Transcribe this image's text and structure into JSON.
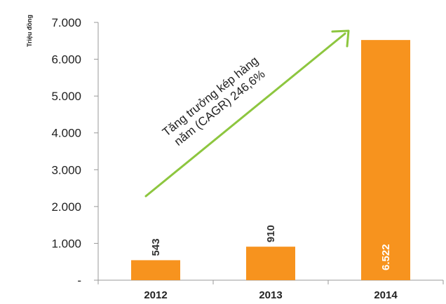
{
  "chart_data": {
    "type": "bar",
    "ylabel": "Triệu đồng",
    "categories": [
      "2012",
      "2013",
      "2014"
    ],
    "values": [
      543,
      910,
      6522
    ],
    "value_labels": [
      "543",
      "910",
      "6.522"
    ],
    "ylim": [
      0,
      7000
    ],
    "yticks": [
      0,
      1000,
      2000,
      3000,
      4000,
      5000,
      6000,
      7000
    ],
    "ytick_labels": [
      "-",
      "1.000",
      "2.000",
      "3.000",
      "4.000",
      "5.000",
      "6.000",
      "7.000"
    ],
    "grid": false,
    "annotation": {
      "lines": [
        "Tăng trưởng kép hàng",
        "năm (CAGR) 246,6%"
      ],
      "arrow_color": "#8dc63f"
    },
    "colors": {
      "bar": "#f7931e",
      "label_dark": "#333333",
      "label_light": "#ffffff"
    }
  }
}
